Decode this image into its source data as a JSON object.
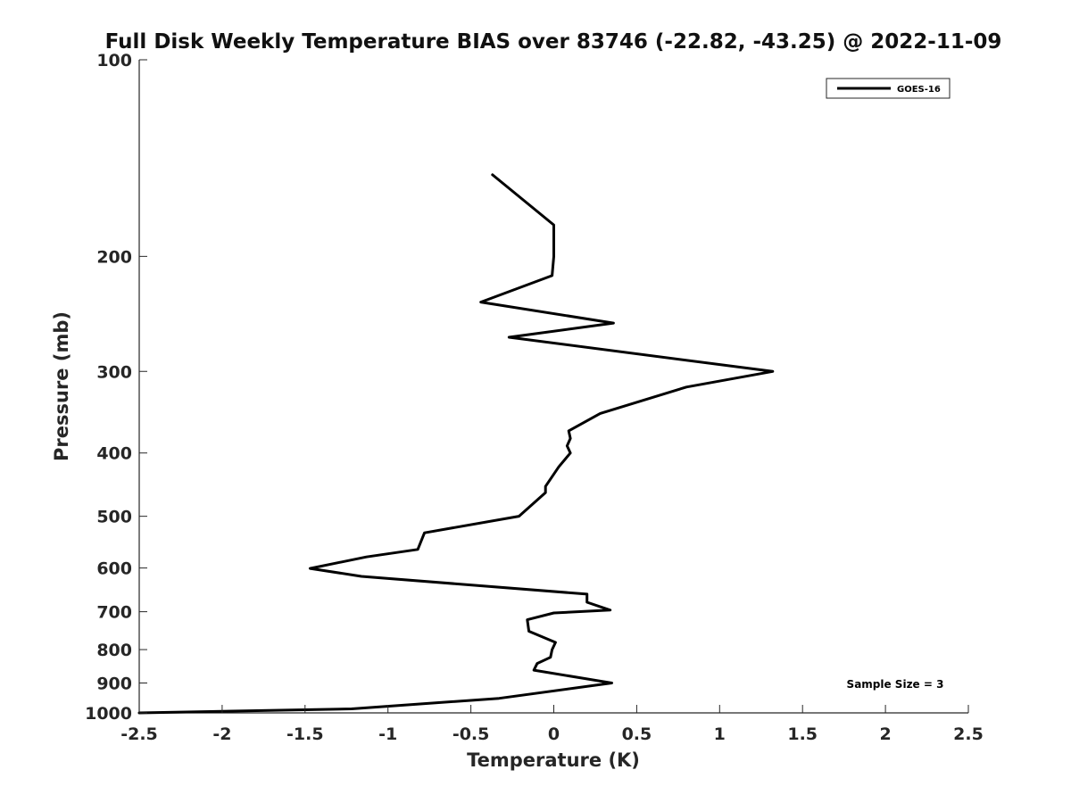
{
  "chart_data": {
    "type": "line",
    "title": "Full Disk Weekly Temperature BIAS over 83746 (-22.82, -43.25) @ 2022-11-09",
    "xlabel": "Temperature (K)",
    "ylabel": "Pressure (mb)",
    "xlim": [
      -2.5,
      2.5
    ],
    "ylim": [
      100,
      1000
    ],
    "y_scale": "log",
    "y_reversed": true,
    "x_ticks": [
      -2.5,
      -2,
      -1.5,
      -1,
      -0.5,
      0,
      0.5,
      1,
      1.5,
      2,
      2.5
    ],
    "x_tick_labels": [
      "-2.5",
      "-2",
      "-1.5",
      "-1",
      "-0.5",
      "0",
      "0.5",
      "1",
      "1.5",
      "2",
      "2.5"
    ],
    "y_ticks": [
      100,
      200,
      300,
      400,
      500,
      600,
      700,
      800,
      900,
      1000
    ],
    "y_tick_labels": [
      "100",
      "200",
      "300",
      "400",
      "500",
      "600",
      "700",
      "800",
      "900",
      "1000"
    ],
    "grid": false,
    "legend_position": "top-right",
    "series": [
      {
        "name": "GOES-16",
        "color": "#000000",
        "x": [
          -0.37,
          0.0,
          0.0,
          0.0,
          -0.01,
          -0.44,
          0.36,
          -0.27,
          1.32,
          0.8,
          0.28,
          0.09,
          0.1,
          0.08,
          0.1,
          0.03,
          -0.05,
          -0.05,
          -0.21,
          -0.78,
          -0.82,
          -1.13,
          -1.47,
          -1.16,
          0.2,
          0.2,
          0.34,
          0.0,
          -0.16,
          -0.15,
          0.01,
          -0.01,
          -0.02,
          -0.1,
          -0.12,
          0.35,
          -0.33,
          -1.22,
          -2.5
        ],
        "y": [
          150,
          179,
          190,
          200,
          214,
          235,
          253,
          266,
          300,
          317,
          348,
          370,
          380,
          390,
          400,
          420,
          450,
          460,
          500,
          530,
          562,
          577,
          601,
          618,
          658,
          677,
          696,
          703,
          720,
          750,
          780,
          800,
          822,
          840,
          860,
          900,
          950,
          986,
          1000
        ]
      }
    ],
    "annotations": [
      {
        "text": "Sample Size = 3",
        "position": "bottom-right"
      }
    ]
  }
}
